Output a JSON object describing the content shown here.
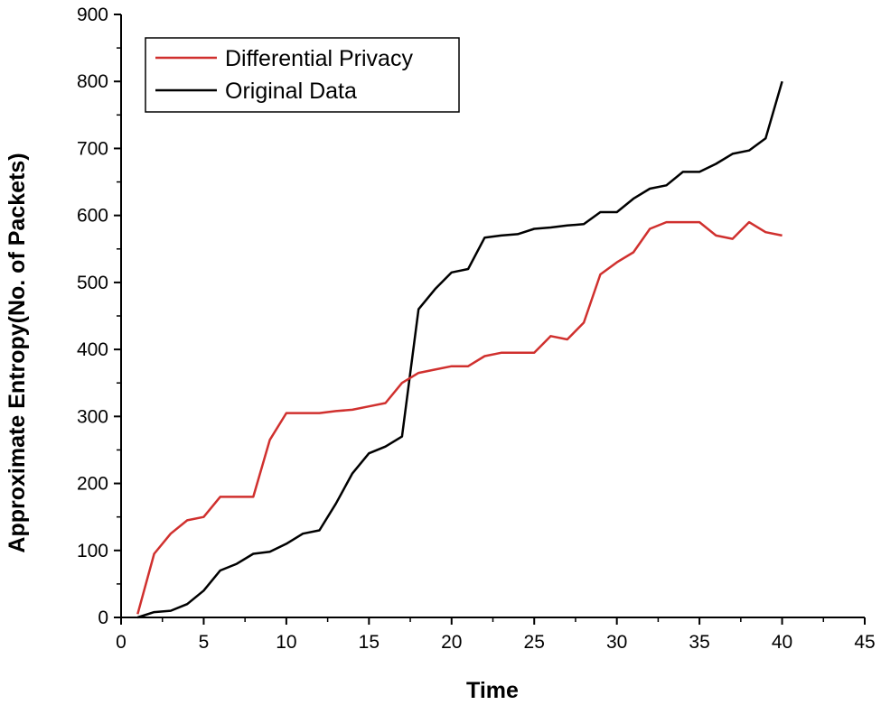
{
  "chart_data": {
    "type": "line",
    "title": "",
    "xlabel": "Time",
    "ylabel": "Approximate Entropy(No. of Packets)",
    "xlim": [
      0,
      45
    ],
    "ylim": [
      0,
      900
    ],
    "x_ticks": [
      "0",
      "5",
      "10",
      "15",
      "20",
      "25",
      "30",
      "35",
      "40",
      "45"
    ],
    "y_ticks": [
      "0",
      "100",
      "200",
      "300",
      "400",
      "500",
      "600",
      "700",
      "800",
      "900"
    ],
    "grid": false,
    "legend_position": "top-left",
    "series": [
      {
        "name": "Differential Privacy",
        "color": "#d0302e",
        "x": [
          1,
          2,
          3,
          4,
          5,
          6,
          7,
          8,
          9,
          10,
          11,
          12,
          13,
          14,
          15,
          16,
          17,
          18,
          19,
          20,
          21,
          22,
          23,
          24,
          25,
          26,
          27,
          28,
          29,
          30,
          31,
          32,
          33,
          34,
          35,
          36,
          37,
          38,
          39,
          40
        ],
        "values": [
          5,
          95,
          125,
          145,
          150,
          180,
          180,
          180,
          265,
          305,
          305,
          305,
          308,
          310,
          315,
          320,
          350,
          365,
          370,
          375,
          375,
          390,
          395,
          395,
          395,
          420,
          415,
          440,
          512,
          530,
          545,
          580,
          590,
          590,
          590,
          570,
          565,
          590,
          575,
          570
        ]
      },
      {
        "name": "Original Data",
        "color": "#000000",
        "x": [
          1,
          2,
          3,
          4,
          5,
          6,
          7,
          8,
          9,
          10,
          11,
          12,
          13,
          14,
          15,
          16,
          17,
          18,
          19,
          20,
          21,
          22,
          23,
          24,
          25,
          26,
          27,
          28,
          29,
          30,
          31,
          32,
          33,
          34,
          35,
          36,
          37,
          38,
          39,
          40
        ],
        "values": [
          0,
          8,
          10,
          20,
          40,
          70,
          80,
          95,
          98,
          110,
          125,
          130,
          170,
          215,
          245,
          255,
          270,
          460,
          490,
          515,
          520,
          567,
          570,
          572,
          580,
          582,
          585,
          587,
          605,
          605,
          625,
          640,
          645,
          665,
          665,
          677,
          692,
          697,
          715,
          800
        ]
      }
    ]
  }
}
